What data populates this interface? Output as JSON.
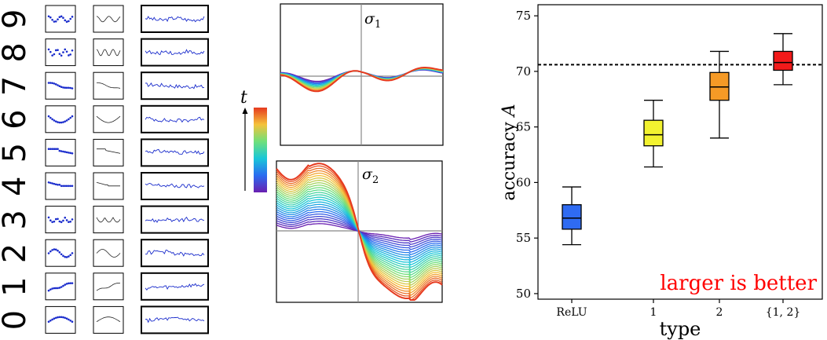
{
  "left_panel": {
    "digits": [
      "9",
      "8",
      "7",
      "6",
      "5",
      "4",
      "3",
      "2",
      "1",
      "0"
    ]
  },
  "middle_panel": {
    "color_axis_label": "t",
    "plot1_label": "σ",
    "plot1_subscript": "1",
    "plot2_label": "σ",
    "plot2_subscript": "2"
  },
  "chart_data": {
    "type": "box",
    "xlabel": "type",
    "ylabel": "accuracy",
    "ylabel_symbol": "A",
    "annotation": "larger is better",
    "annotation_color": "#ff0000",
    "ylim": [
      49.5,
      76
    ],
    "yticks": [
      50,
      55,
      60,
      65,
      70,
      75
    ],
    "reference_line": 70.6,
    "categories": [
      "ReLU",
      "1",
      "2",
      "{1, 2}"
    ],
    "boxes": [
      {
        "min": 54.4,
        "q1": 55.8,
        "median": 56.8,
        "q3": 58.0,
        "max": 59.6,
        "color": "#2f6bf2"
      },
      {
        "min": 61.4,
        "q1": 63.3,
        "median": 64.3,
        "q3": 65.6,
        "max": 67.4,
        "color": "#f2f230"
      },
      {
        "min": 64.0,
        "q1": 67.4,
        "median": 68.6,
        "q3": 69.9,
        "max": 71.8,
        "color": "#f59a26"
      },
      {
        "min": 68.8,
        "q1": 70.1,
        "median": 70.8,
        "q3": 71.8,
        "max": 73.4,
        "color": "#f21a1a"
      }
    ]
  }
}
